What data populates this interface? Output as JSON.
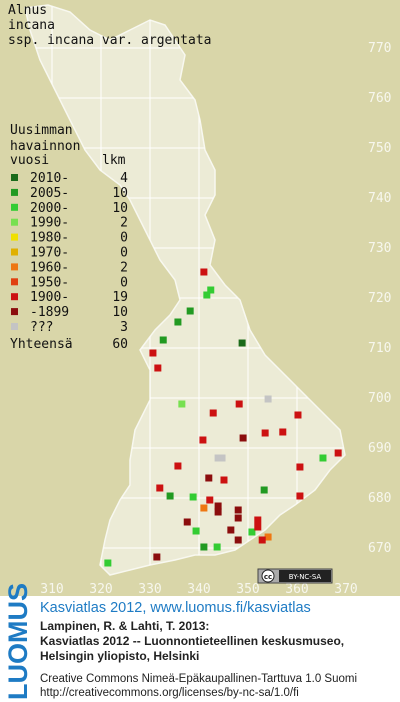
{
  "title": [
    "Alnus",
    "incana",
    "ssp. incana var. argentata"
  ],
  "legend": {
    "heading": [
      "Uusimman",
      "havainnon",
      "vuosi"
    ],
    "count_heading": "lkm",
    "rows": [
      {
        "label": "2010-",
        "count": 4,
        "color": "#1b6b1b"
      },
      {
        "label": "2005-",
        "count": 10,
        "color": "#229a22"
      },
      {
        "label": "2000-",
        "count": 10,
        "color": "#33cc33"
      },
      {
        "label": "1990-",
        "count": 2,
        "color": "#77e050"
      },
      {
        "label": "1980-",
        "count": 0,
        "color": "#f0e000"
      },
      {
        "label": "1970-",
        "count": 0,
        "color": "#e0b000"
      },
      {
        "label": "1960-",
        "count": 2,
        "color": "#ee7711"
      },
      {
        "label": "1950-",
        "count": 0,
        "color": "#e04010"
      },
      {
        "label": "1900-",
        "count": 19,
        "color": "#cc1111"
      },
      {
        "label": "-1899",
        "count": 10,
        "color": "#8b0d0d"
      },
      {
        "label": "???",
        "count": 3,
        "color": "#c4c4c4"
      }
    ],
    "total_label": "Yhteensä",
    "total": 60
  },
  "grid": {
    "yticks": [
      770,
      760,
      750,
      740,
      730,
      720,
      710,
      700,
      690,
      680,
      670
    ],
    "xticks": [
      310,
      320,
      330,
      340,
      350,
      360,
      370
    ]
  },
  "points": [
    {
      "x": 341.0,
      "y": 725.2,
      "class": 8
    },
    {
      "x": 342.4,
      "y": 721.6,
      "class": 2
    },
    {
      "x": 341.6,
      "y": 720.6,
      "class": 2
    },
    {
      "x": 338.2,
      "y": 717.4,
      "class": 1
    },
    {
      "x": 335.7,
      "y": 715.2,
      "class": 1
    },
    {
      "x": 332.7,
      "y": 711.6,
      "class": 1
    },
    {
      "x": 330.6,
      "y": 709.0,
      "class": 8
    },
    {
      "x": 348.8,
      "y": 711.0,
      "class": 0
    },
    {
      "x": 331.6,
      "y": 706.0,
      "class": 8
    },
    {
      "x": 336.5,
      "y": 698.8,
      "class": 3
    },
    {
      "x": 354.1,
      "y": 699.8,
      "class": 10
    },
    {
      "x": 342.9,
      "y": 697.0,
      "class": 8
    },
    {
      "x": 348.2,
      "y": 698.8,
      "class": 8
    },
    {
      "x": 360.2,
      "y": 696.6,
      "class": 8
    },
    {
      "x": 353.5,
      "y": 693.0,
      "class": 8
    },
    {
      "x": 357.1,
      "y": 693.2,
      "class": 8
    },
    {
      "x": 349.0,
      "y": 692.0,
      "class": 9
    },
    {
      "x": 340.8,
      "y": 691.6,
      "class": 8
    },
    {
      "x": 368.4,
      "y": 689.0,
      "class": 8
    },
    {
      "x": 365.3,
      "y": 688.0,
      "class": 2
    },
    {
      "x": 343.9,
      "y": 688.0,
      "class": 10
    },
    {
      "x": 344.7,
      "y": 688.0,
      "class": 10
    },
    {
      "x": 360.6,
      "y": 686.2,
      "class": 8
    },
    {
      "x": 335.7,
      "y": 686.4,
      "class": 8
    },
    {
      "x": 342.0,
      "y": 684.0,
      "class": 9
    },
    {
      "x": 345.1,
      "y": 683.6,
      "class": 8
    },
    {
      "x": 332.0,
      "y": 682.0,
      "class": 8
    },
    {
      "x": 353.3,
      "y": 681.6,
      "class": 1
    },
    {
      "x": 360.6,
      "y": 680.4,
      "class": 8
    },
    {
      "x": 334.1,
      "y": 680.4,
      "class": 1
    },
    {
      "x": 338.8,
      "y": 680.2,
      "class": 2
    },
    {
      "x": 342.2,
      "y": 679.6,
      "class": 8
    },
    {
      "x": 343.9,
      "y": 678.4,
      "class": 9
    },
    {
      "x": 343.9,
      "y": 677.2,
      "class": 9
    },
    {
      "x": 348.0,
      "y": 677.6,
      "class": 9
    },
    {
      "x": 348.0,
      "y": 676.0,
      "class": 9
    },
    {
      "x": 341.0,
      "y": 678.0,
      "class": 6
    },
    {
      "x": 352.0,
      "y": 675.6,
      "class": 8
    },
    {
      "x": 337.6,
      "y": 675.2,
      "class": 9
    },
    {
      "x": 354.1,
      "y": 672.2,
      "class": 6
    },
    {
      "x": 339.4,
      "y": 673.4,
      "class": 2
    },
    {
      "x": 346.5,
      "y": 673.6,
      "class": 9
    },
    {
      "x": 350.8,
      "y": 673.2,
      "class": 2
    },
    {
      "x": 352.0,
      "y": 674.2,
      "class": 8
    },
    {
      "x": 348.0,
      "y": 671.6,
      "class": 9
    },
    {
      "x": 352.9,
      "y": 671.6,
      "class": 8
    },
    {
      "x": 341.0,
      "y": 670.2,
      "class": 1
    },
    {
      "x": 343.7,
      "y": 670.2,
      "class": 2
    },
    {
      "x": 331.4,
      "y": 668.2,
      "class": 9
    },
    {
      "x": 321.4,
      "y": 667.0,
      "class": 2
    }
  ],
  "badge": {
    "cc": "cc",
    "license": "BY-NC-SA"
  },
  "footer": {
    "logo": "LUOMUS",
    "link": "Kasviatlas 2012, www.luomus.fi/kasviatlas",
    "lines": [
      "Lampinen, R. & Lahti, T. 2013:",
      "Kasviatlas 2012 -- Luonnontieteellinen keskusmuseo,",
      "Helsingin yliopisto, Helsinki"
    ],
    "license_lines": [
      "Creative Commons Nimeä-Epäkaupallinen-Tarttuva 1.0 Suomi",
      "http://creativecommons.org/licenses/by-nc-sa/1.0/fi"
    ]
  }
}
